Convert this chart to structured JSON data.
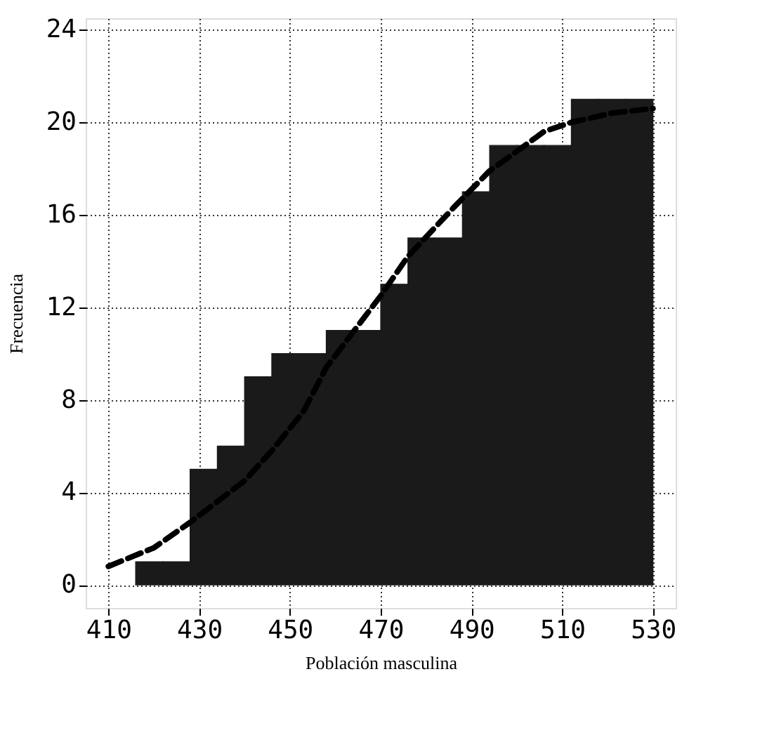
{
  "chart_data": {
    "type": "histogram",
    "xlabel": "Población masculina",
    "ylabel": "Frecuencia",
    "bins": [
      416,
      422,
      428,
      434,
      440,
      446,
      452,
      458,
      464,
      470,
      476,
      482,
      488,
      494,
      500,
      506,
      512,
      518,
      524,
      530
    ],
    "values": [
      1,
      1,
      5,
      6,
      9,
      10,
      10,
      11,
      11,
      13,
      15,
      15,
      17,
      19,
      19,
      19,
      21,
      21,
      21
    ],
    "color": "#1a1a1a",
    "series": [
      {
        "type": "line",
        "line_style": "dashed",
        "color": "#000000",
        "x": [
          410,
          420,
          428,
          440,
          446,
          453,
          458,
          470,
          476,
          486,
          494,
          506,
          512,
          521,
          530
        ],
        "values": [
          0.8,
          1.6,
          2.7,
          4.5,
          5.8,
          7.5,
          9.4,
          12.5,
          14.2,
          16.3,
          17.9,
          19.6,
          20.0,
          20.4,
          20.6
        ]
      }
    ],
    "xlim": [
      405,
      535
    ],
    "ylim": [
      -1,
      24.5
    ],
    "xticks": [
      410,
      430,
      450,
      470,
      490,
      510,
      530
    ],
    "yticks": [
      0,
      4,
      8,
      12,
      16,
      20,
      24
    ],
    "grid": true
  }
}
